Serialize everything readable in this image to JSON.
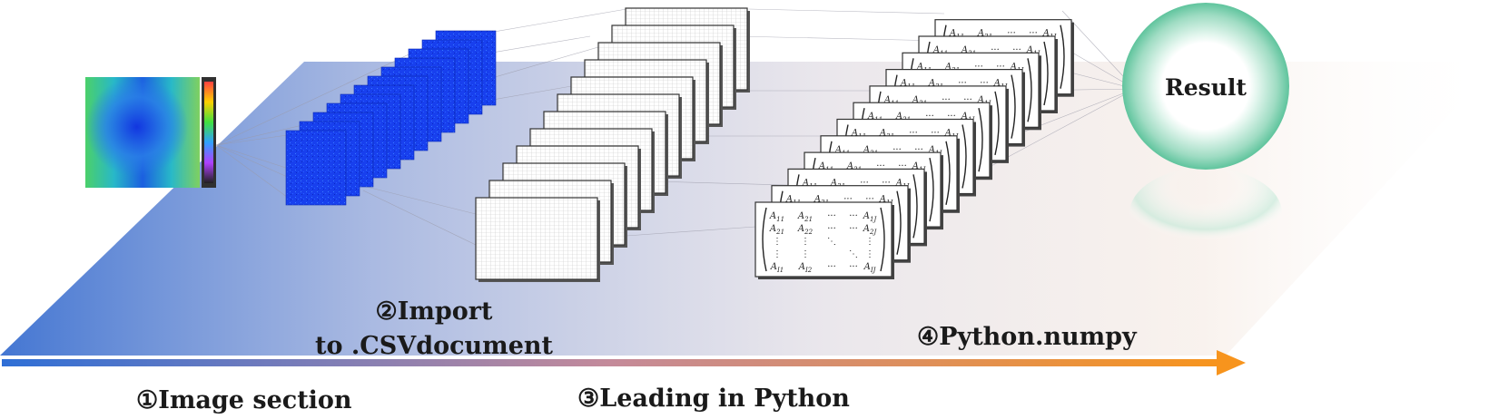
{
  "steps": {
    "step1": {
      "marker": "①",
      "label": "Image section"
    },
    "step2": {
      "marker": "②",
      "label_line1": "Import",
      "label_line2": "to .CSVdocument"
    },
    "step3": {
      "marker": "③",
      "label": "Leading in Python"
    },
    "step4": {
      "marker": "④",
      "label": "Python.numpy"
    }
  },
  "result": {
    "label": "Result"
  },
  "matrix": {
    "symbol": "A",
    "row1": [
      "11",
      "21",
      "···",
      "···",
      "1J"
    ],
    "row2": [
      "21",
      "22",
      "···",
      "···",
      "2J"
    ],
    "row3": [
      "⋮",
      "⋮",
      "⋱",
      "",
      "⋮"
    ],
    "row4": [
      "⋮",
      "⋮",
      "",
      "⋱",
      "⋮"
    ],
    "row5": [
      "I1",
      "I2",
      "···",
      "···",
      "IJ"
    ]
  },
  "counts": {
    "heatmap_slices": 12,
    "csv_sheets": 12,
    "matrices": 12
  },
  "colors": {
    "flow_start": "#2f6fd6",
    "flow_end": "#f7941d",
    "ring": "#66c9a6",
    "heatmap_blue": "#1a3cf0"
  }
}
